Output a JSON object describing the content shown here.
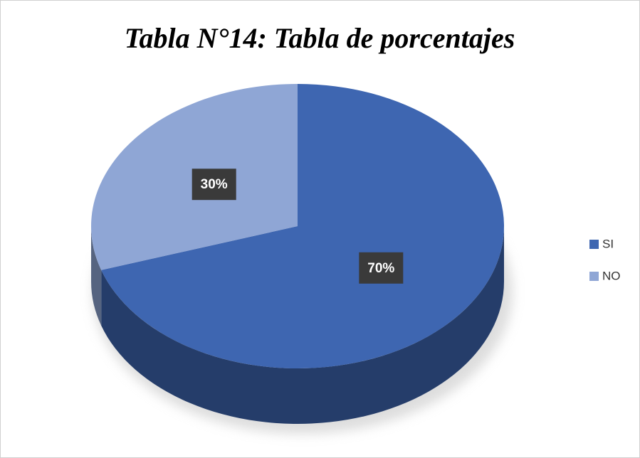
{
  "chart_data": {
    "type": "pie",
    "title": "Tabla N°14: Tabla de porcentajes",
    "categories": [
      "SI",
      "NO"
    ],
    "values": [
      70,
      30
    ],
    "value_labels": [
      "70%",
      "30%"
    ],
    "colors": [
      "#3e66b1",
      "#8fa6d5"
    ],
    "legend": "right"
  }
}
